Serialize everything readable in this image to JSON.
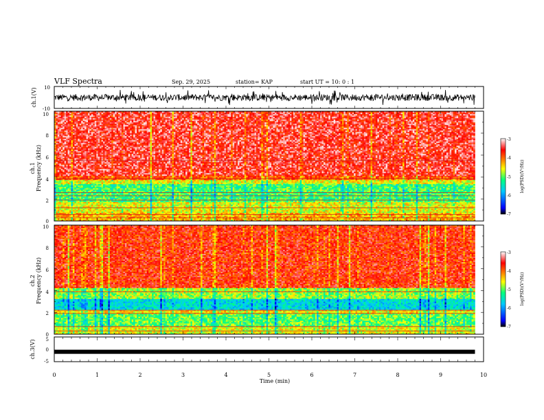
{
  "header": {
    "title": "VLF Spectra",
    "date": "Sep. 29, 2025",
    "station": "station= KAP",
    "start": "start  UT =  10: 0  : 1"
  },
  "chart_data": [
    {
      "type": "line",
      "name": "ch1-waveform",
      "ylabel": "ch.1(V)",
      "ylim": [
        -10,
        10
      ],
      "yticks": [
        "10",
        "-10"
      ],
      "xlim": [
        0,
        10
      ],
      "series": [
        {
          "name": "ch.1",
          "amplitude_typical": 3,
          "amplitude_max": 7,
          "x_end": 9.8
        }
      ]
    },
    {
      "type": "heatmap",
      "name": "ch1-spectrogram",
      "ylabel_line1": "ch.1",
      "ylabel_line2": "Frequency (kHz)",
      "ylim": [
        0,
        10
      ],
      "yticks": [
        "0",
        "2",
        "4",
        "6",
        "8",
        "10"
      ],
      "xlim": [
        0,
        9.8
      ],
      "colorbar": {
        "label": "log(PSD)(V²/Hz)",
        "range": [
          -7,
          -3
        ],
        "ticks": [
          "-3",
          "-4",
          "-5",
          "-6",
          "-7"
        ],
        "colors": [
          "#000000",
          "#0000ff",
          "#00c8ff",
          "#00ff80",
          "#ffff00",
          "#ff8000",
          "#ff0000",
          "#ffffff"
        ]
      },
      "bands": [
        {
          "from": 0,
          "to": 0.8,
          "level": -4.3
        },
        {
          "from": 0.8,
          "to": 1.8,
          "level": -4.6
        },
        {
          "from": 1.8,
          "to": 3.4,
          "level": -5.1
        },
        {
          "from": 3.4,
          "to": 3.8,
          "level": -4.6
        },
        {
          "from": 3.8,
          "to": 4.1,
          "level": -3.9
        },
        {
          "from": 4.1,
          "to": 10,
          "level": -3.5
        }
      ],
      "lines_khz": [
        0.3,
        0.6,
        1.2,
        1.9,
        2.3,
        2.6,
        3.85,
        5.5
      ]
    },
    {
      "type": "heatmap",
      "name": "ch2-spectrogram",
      "ylabel_line1": "ch.2",
      "ylabel_line2": "Frequency (kHz)",
      "ylim": [
        0,
        10
      ],
      "yticks": [
        "0",
        "2",
        "4",
        "6",
        "8",
        "10"
      ],
      "xlim": [
        0,
        9.8
      ],
      "colorbar": {
        "label": "log(PSD)(V²/Hz)",
        "range": [
          -7,
          -3
        ],
        "ticks": [
          "-3",
          "-4",
          "-5",
          "-6",
          "-7"
        ],
        "colors": [
          "#000000",
          "#0000ff",
          "#00c8ff",
          "#00ff80",
          "#ffff00",
          "#ff8000",
          "#ff0000",
          "#ffffff"
        ]
      },
      "bands": [
        {
          "from": 0,
          "to": 0.7,
          "level": -4.6
        },
        {
          "from": 0.7,
          "to": 1.9,
          "level": -5.0
        },
        {
          "from": 1.9,
          "to": 2.2,
          "level": -4.5
        },
        {
          "from": 2.2,
          "to": 3.2,
          "level": -5.6
        },
        {
          "from": 3.2,
          "to": 4.3,
          "level": -4.8
        },
        {
          "from": 4.3,
          "to": 10,
          "level": -3.7
        }
      ],
      "lines_khz": [
        0.3,
        0.7,
        1.9,
        2.2,
        3.9
      ]
    },
    {
      "type": "line",
      "name": "ch3-waveform",
      "ylabel": "ch.3(V)",
      "ylim": [
        -5,
        5
      ],
      "yticks": [
        "5",
        "0",
        "-5"
      ],
      "xlim": [
        0,
        10
      ],
      "series": [
        {
          "name": "ch.3",
          "level": -1,
          "x_end": 9.8
        }
      ]
    }
  ],
  "xaxis": {
    "label": "Time (min)",
    "range": [
      0,
      10
    ],
    "ticks": [
      "0",
      "1",
      "2",
      "3",
      "4",
      "5",
      "6",
      "7",
      "8",
      "9",
      "10"
    ]
  }
}
